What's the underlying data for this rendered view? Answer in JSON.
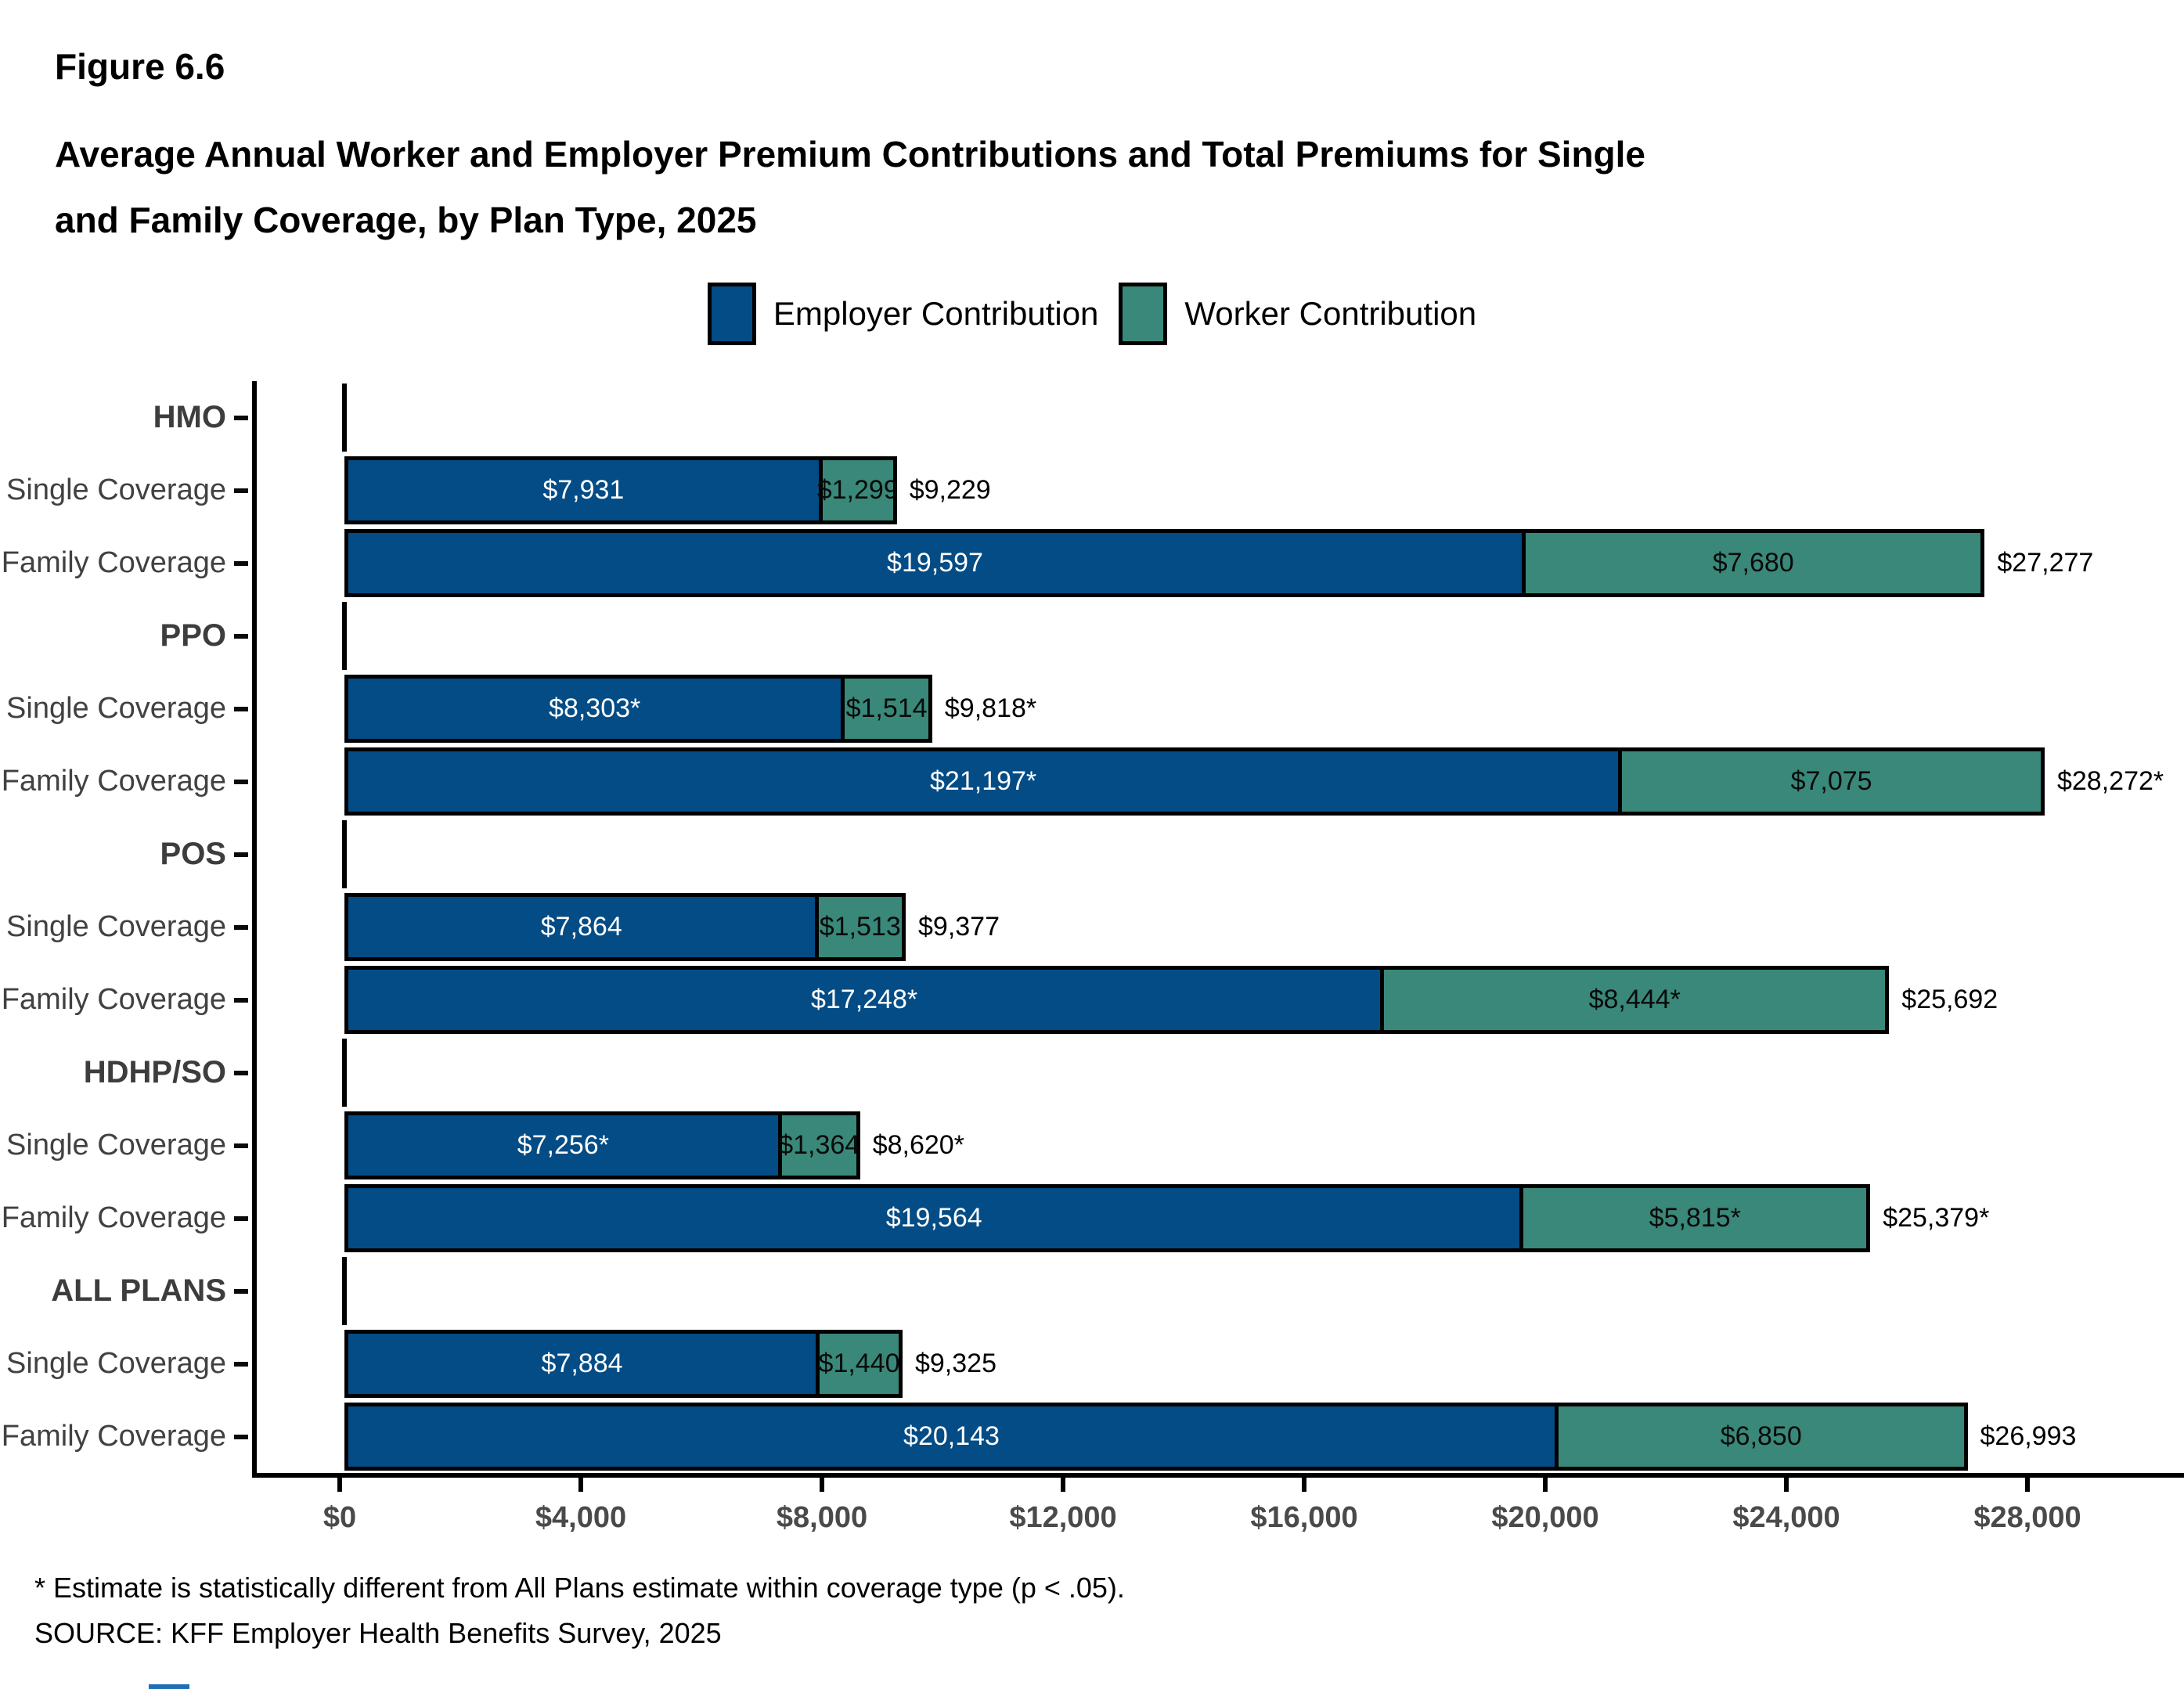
{
  "figure": {
    "label": "Figure 6.6",
    "title_line1": "Average Annual Worker and Employer Premium Contributions and Total Premiums for Single",
    "title_line2": "and Family Coverage, by Plan Type, 2025"
  },
  "legend": [
    {
      "name": "Employer Contribution",
      "color": "#034C85"
    },
    {
      "name": "Worker Contribution",
      "color": "#398879"
    }
  ],
  "footnotes": {
    "asterisk": "* Estimate is statistically different from All Plans estimate within coverage type (p < .05).",
    "source": "SOURCE: KFF Employer Health Benefits Survey, 2025"
  },
  "chart_data": {
    "type": "bar",
    "orientation": "horizontal",
    "stacked": true,
    "title": "Average Annual Worker and Employer Premium Contributions and Total Premiums for Single and Family Coverage, by Plan Type, 2025",
    "series_names": [
      "Employer Contribution",
      "Worker Contribution"
    ],
    "colors": {
      "employer": "#034C85",
      "worker": "#398879"
    },
    "x_axis": {
      "min": 0,
      "max": 28000,
      "tick_values": [
        0,
        4000,
        8000,
        12000,
        16000,
        20000,
        24000,
        28000
      ],
      "tick_labels": [
        "$0",
        "$4,000",
        "$8,000",
        "$12,000",
        "$16,000",
        "$20,000",
        "$24,000",
        "$28,000"
      ]
    },
    "rows": [
      {
        "label": "HMO",
        "header": true
      },
      {
        "label": "Single Coverage",
        "section": "HMO",
        "employer": 7931,
        "employer_label": "$7,931",
        "worker": 1299,
        "worker_label": "$1,299",
        "total": 9229,
        "total_label": "$9,229"
      },
      {
        "label": "Family Coverage",
        "section": "HMO",
        "employer": 19597,
        "employer_label": "$19,597",
        "worker": 7680,
        "worker_label": "$7,680",
        "total": 27277,
        "total_label": "$27,277"
      },
      {
        "label": "PPO",
        "header": true
      },
      {
        "label": "Single Coverage",
        "section": "PPO",
        "employer": 8303,
        "employer_label": "$8,303*",
        "worker": 1514,
        "worker_label": "$1,514",
        "total": 9818,
        "total_label": "$9,818*"
      },
      {
        "label": "Family Coverage",
        "section": "PPO",
        "employer": 21197,
        "employer_label": "$21,197*",
        "worker": 7075,
        "worker_label": "$7,075",
        "total": 28272,
        "total_label": "$28,272*"
      },
      {
        "label": "POS",
        "header": true
      },
      {
        "label": "Single Coverage",
        "section": "POS",
        "employer": 7864,
        "employer_label": "$7,864",
        "worker": 1513,
        "worker_label": "$1,513",
        "total": 9377,
        "total_label": "$9,377"
      },
      {
        "label": "Family Coverage",
        "section": "POS",
        "employer": 17248,
        "employer_label": "$17,248*",
        "worker": 8444,
        "worker_label": "$8,444*",
        "total": 25692,
        "total_label": "$25,692"
      },
      {
        "label": "HDHP/SO",
        "header": true
      },
      {
        "label": "Single Coverage",
        "section": "HDHP/SO",
        "employer": 7256,
        "employer_label": "$7,256*",
        "worker": 1364,
        "worker_label": "$1,364",
        "total": 8620,
        "total_label": "$8,620*"
      },
      {
        "label": "Family Coverage",
        "section": "HDHP/SO",
        "employer": 19564,
        "employer_label": "$19,564",
        "worker": 5815,
        "worker_label": "$5,815*",
        "total": 25379,
        "total_label": "$25,379*"
      },
      {
        "label": "ALL PLANS",
        "header": true
      },
      {
        "label": "Single Coverage",
        "section": "ALL PLANS",
        "employer": 7884,
        "employer_label": "$7,884",
        "worker": 1440,
        "worker_label": "$1,440",
        "total": 9325,
        "total_label": "$9,325"
      },
      {
        "label": "Family Coverage",
        "section": "ALL PLANS",
        "employer": 20143,
        "employer_label": "$20,143",
        "worker": 6850,
        "worker_label": "$6,850",
        "total": 26993,
        "total_label": "$26,993"
      }
    ]
  }
}
